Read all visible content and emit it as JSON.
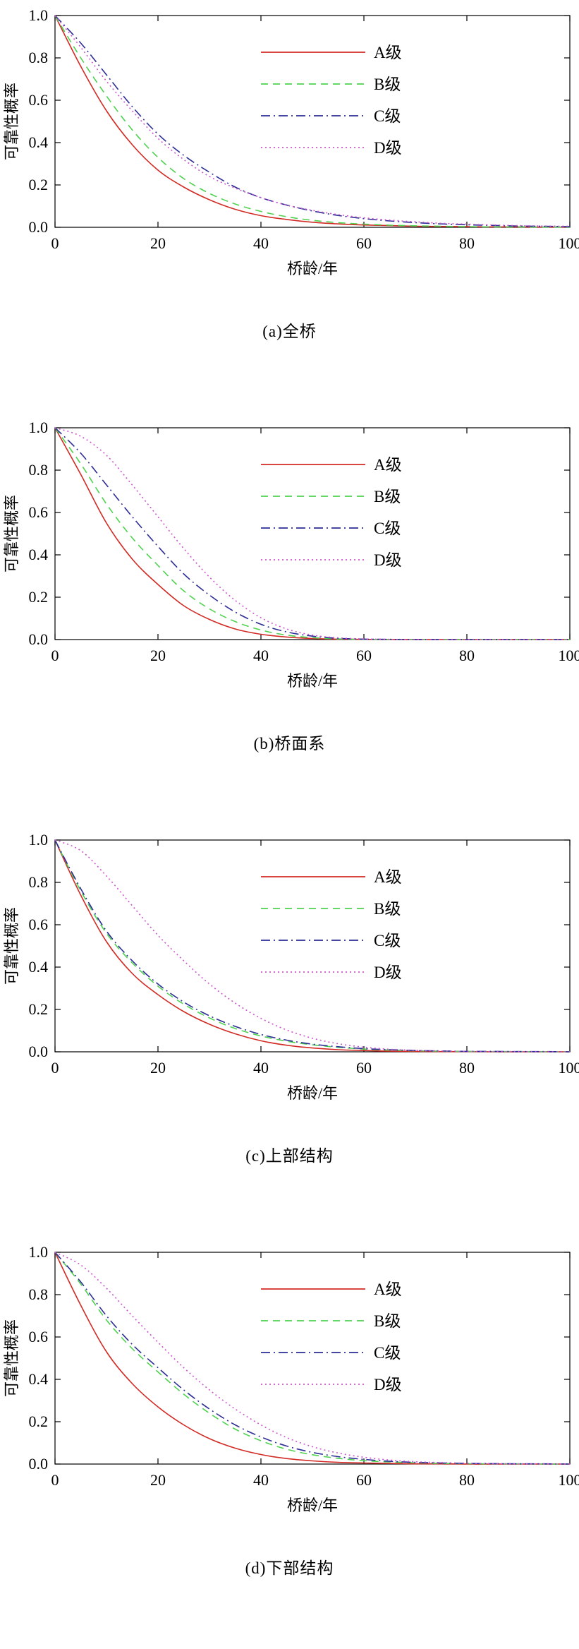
{
  "figure": {
    "xlabel": "桥龄/年",
    "ylabel": "可靠性概率",
    "colors": {
      "grade_a": "#d22b25",
      "grade_b": "#4fd24f",
      "grade_c": "#2d2d96",
      "grade_d": "#cc55cc",
      "axis": "#000000"
    }
  },
  "chart_data": [
    {
      "id": "a",
      "type": "line",
      "caption": "(a)全桥",
      "xlabel": "桥龄/年",
      "ylabel": "可靠性概率",
      "xlim": [
        0,
        100
      ],
      "ylim": [
        0,
        1
      ],
      "xticks": [
        0,
        20,
        40,
        60,
        80,
        100
      ],
      "yticks": [
        0,
        0.2,
        0.4,
        0.6,
        0.8,
        1.0
      ],
      "ytick_labels": [
        "0.0",
        "0.2",
        "0.4",
        "0.6",
        "0.8",
        "1.0"
      ],
      "grid": false,
      "legend_position": "upper right",
      "x": [
        0,
        5,
        10,
        15,
        20,
        25,
        30,
        35,
        40,
        45,
        50,
        55,
        60,
        65,
        70,
        75,
        80,
        85,
        90,
        95,
        100
      ],
      "series": [
        {
          "name": "A级",
          "color": "#d22b25",
          "linestyle": "solid",
          "values": [
            1,
            0.76,
            0.55,
            0.39,
            0.27,
            0.19,
            0.13,
            0.085,
            0.055,
            0.037,
            0.024,
            0.016,
            0.011,
            0.008,
            0.005,
            0.004,
            0.003,
            0.002,
            0.002,
            0.001,
            0.001
          ]
        },
        {
          "name": "B级",
          "color": "#4fd24f",
          "linestyle": "dashed",
          "values": [
            1,
            0.8,
            0.62,
            0.46,
            0.33,
            0.23,
            0.16,
            0.11,
            0.075,
            0.05,
            0.033,
            0.022,
            0.015,
            0.01,
            0.007,
            0.005,
            0.003,
            0.002,
            0.002,
            0.001,
            0.001
          ]
        },
        {
          "name": "C级",
          "color": "#2d2d96",
          "linestyle": "dashdot",
          "values": [
            1,
            0.87,
            0.72,
            0.57,
            0.44,
            0.34,
            0.26,
            0.19,
            0.14,
            0.105,
            0.077,
            0.056,
            0.041,
            0.03,
            0.022,
            0.016,
            0.012,
            0.009,
            0.006,
            0.005,
            0.003
          ]
        },
        {
          "name": "D级",
          "color": "#cc55cc",
          "linestyle": "dotted",
          "values": [
            1,
            0.85,
            0.69,
            0.55,
            0.42,
            0.32,
            0.24,
            0.185,
            0.14,
            0.105,
            0.08,
            0.06,
            0.045,
            0.034,
            0.026,
            0.019,
            0.015,
            0.011,
            0.008,
            0.006,
            0.005
          ]
        }
      ]
    },
    {
      "id": "b",
      "type": "line",
      "caption": "(b)桥面系",
      "xlabel": "桥龄/年",
      "ylabel": "可靠性概率",
      "xlim": [
        0,
        100
      ],
      "ylim": [
        0,
        1
      ],
      "xticks": [
        0,
        20,
        40,
        60,
        80,
        100
      ],
      "yticks": [
        0,
        0.2,
        0.4,
        0.6,
        0.8,
        1.0
      ],
      "ytick_labels": [
        "0.0",
        "0.2",
        "0.4",
        "0.6",
        "0.8",
        "1.0"
      ],
      "grid": false,
      "legend_position": "upper right",
      "x": [
        0,
        5,
        10,
        15,
        20,
        25,
        30,
        35,
        40,
        45,
        50,
        55,
        60,
        65,
        70,
        75,
        80,
        85,
        90,
        95,
        100
      ],
      "series": [
        {
          "name": "A级",
          "color": "#d22b25",
          "linestyle": "solid",
          "values": [
            1,
            0.78,
            0.55,
            0.38,
            0.26,
            0.16,
            0.095,
            0.05,
            0.025,
            0.012,
            0.005,
            0.002,
            0.001,
            0,
            0,
            0,
            0,
            0,
            0,
            0,
            0
          ]
        },
        {
          "name": "B级",
          "color": "#4fd24f",
          "linestyle": "dashed",
          "values": [
            1,
            0.83,
            0.64,
            0.48,
            0.35,
            0.23,
            0.145,
            0.085,
            0.045,
            0.021,
            0.009,
            0.003,
            0.001,
            0,
            0,
            0,
            0,
            0,
            0,
            0,
            0
          ]
        },
        {
          "name": "C级",
          "color": "#2d2d96",
          "linestyle": "dashdot",
          "values": [
            1,
            0.88,
            0.73,
            0.58,
            0.44,
            0.31,
            0.21,
            0.13,
            0.072,
            0.036,
            0.016,
            0.006,
            0.002,
            0.001,
            0,
            0,
            0,
            0,
            0,
            0,
            0
          ]
        },
        {
          "name": "D级",
          "color": "#cc55cc",
          "linestyle": "dotted",
          "values": [
            1,
            0.96,
            0.87,
            0.73,
            0.58,
            0.43,
            0.295,
            0.185,
            0.103,
            0.05,
            0.021,
            0.008,
            0.003,
            0.001,
            0,
            0,
            0,
            0,
            0,
            0,
            0
          ]
        }
      ]
    },
    {
      "id": "c",
      "type": "line",
      "caption": "(c)上部结构",
      "xlabel": "桥龄/年",
      "ylabel": "可靠性概率",
      "xlim": [
        0,
        100
      ],
      "ylim": [
        0,
        1
      ],
      "xticks": [
        0,
        20,
        40,
        60,
        80,
        100
      ],
      "yticks": [
        0,
        0.2,
        0.4,
        0.6,
        0.8,
        1.0
      ],
      "ytick_labels": [
        "0.0",
        "0.2",
        "0.4",
        "0.6",
        "0.8",
        "1.0"
      ],
      "grid": false,
      "legend_position": "upper right",
      "x": [
        0,
        5,
        10,
        15,
        20,
        25,
        30,
        35,
        40,
        45,
        50,
        55,
        60,
        65,
        70,
        75,
        80,
        85,
        90,
        95,
        100
      ],
      "series": [
        {
          "name": "A级",
          "color": "#d22b25",
          "linestyle": "solid",
          "values": [
            1,
            0.74,
            0.52,
            0.37,
            0.27,
            0.19,
            0.13,
            0.085,
            0.052,
            0.031,
            0.018,
            0.01,
            0.006,
            0.003,
            0.002,
            0.001,
            0.001,
            0,
            0,
            0,
            0
          ]
        },
        {
          "name": "B级",
          "color": "#4fd24f",
          "linestyle": "dashed",
          "values": [
            1,
            0.76,
            0.56,
            0.42,
            0.31,
            0.225,
            0.16,
            0.11,
            0.075,
            0.05,
            0.033,
            0.021,
            0.013,
            0.008,
            0.005,
            0.003,
            0.002,
            0.001,
            0.001,
            0,
            0
          ]
        },
        {
          "name": "C级",
          "color": "#2d2d96",
          "linestyle": "dashdot",
          "values": [
            1,
            0.77,
            0.57,
            0.43,
            0.32,
            0.235,
            0.17,
            0.12,
            0.082,
            0.055,
            0.036,
            0.024,
            0.015,
            0.01,
            0.006,
            0.004,
            0.002,
            0.002,
            0.001,
            0.001,
            0
          ]
        },
        {
          "name": "D级",
          "color": "#cc55cc",
          "linestyle": "dotted",
          "values": [
            1,
            0.95,
            0.83,
            0.69,
            0.55,
            0.43,
            0.32,
            0.23,
            0.158,
            0.103,
            0.064,
            0.038,
            0.022,
            0.012,
            0.007,
            0.004,
            0.002,
            0.001,
            0.001,
            0,
            0
          ]
        }
      ]
    },
    {
      "id": "d",
      "type": "line",
      "caption": "(d)下部结构",
      "xlabel": "桥龄/年",
      "ylabel": "可靠性概率",
      "xlim": [
        0,
        100
      ],
      "ylim": [
        0,
        1
      ],
      "xticks": [
        0,
        20,
        40,
        60,
        80,
        100
      ],
      "yticks": [
        0,
        0.2,
        0.4,
        0.6,
        0.8,
        1.0
      ],
      "ytick_labels": [
        "0.0",
        "0.2",
        "0.4",
        "0.6",
        "0.8",
        "1.0"
      ],
      "grid": false,
      "legend_position": "upper right",
      "x": [
        0,
        5,
        10,
        15,
        20,
        25,
        30,
        35,
        40,
        45,
        50,
        55,
        60,
        65,
        70,
        75,
        80,
        85,
        90,
        95,
        100
      ],
      "series": [
        {
          "name": "A级",
          "color": "#d22b25",
          "linestyle": "solid",
          "values": [
            1,
            0.75,
            0.53,
            0.38,
            0.27,
            0.185,
            0.12,
            0.075,
            0.045,
            0.026,
            0.015,
            0.008,
            0.005,
            0.003,
            0.001,
            0.001,
            0,
            0,
            0,
            0,
            0
          ]
        },
        {
          "name": "B级",
          "color": "#4fd24f",
          "linestyle": "dashed",
          "values": [
            1,
            0.85,
            0.68,
            0.545,
            0.435,
            0.33,
            0.24,
            0.165,
            0.11,
            0.07,
            0.044,
            0.027,
            0.016,
            0.01,
            0.006,
            0.003,
            0.002,
            0.001,
            0.001,
            0,
            0
          ]
        },
        {
          "name": "C级",
          "color": "#2d2d96",
          "linestyle": "dashdot",
          "values": [
            1,
            0.86,
            0.7,
            0.565,
            0.455,
            0.35,
            0.26,
            0.185,
            0.128,
            0.085,
            0.055,
            0.035,
            0.022,
            0.013,
            0.008,
            0.005,
            0.003,
            0.002,
            0.001,
            0.001,
            0
          ]
        },
        {
          "name": "D级",
          "color": "#cc55cc",
          "linestyle": "dotted",
          "values": [
            1,
            0.94,
            0.83,
            0.7,
            0.575,
            0.455,
            0.35,
            0.26,
            0.185,
            0.125,
            0.082,
            0.052,
            0.032,
            0.019,
            0.011,
            0.007,
            0.004,
            0.002,
            0.001,
            0.001,
            0
          ]
        }
      ]
    }
  ]
}
